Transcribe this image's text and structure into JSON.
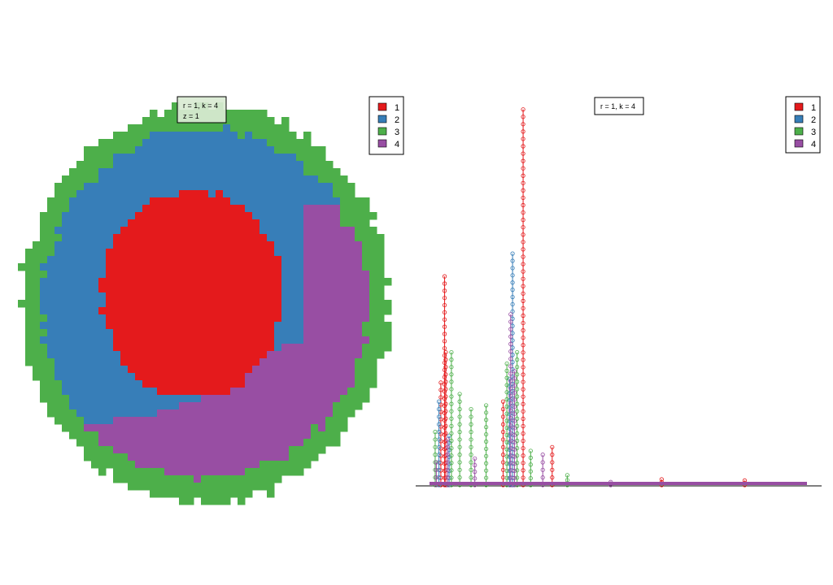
{
  "colors": {
    "cluster_1": "#E41A1C",
    "cluster_2": "#377EB8",
    "cluster_3": "#4DAF4A",
    "cluster_4": "#984EA3",
    "background": "#FFFFFF",
    "axis": "#000000",
    "info_box_fill": "#D9EAD3"
  },
  "chart_data": [
    {
      "type": "heatmap",
      "description_shown": "segmented image: clusters arranged as concentric regions",
      "info_box": {
        "line1": "r = 1, k = 4",
        "line2": "z = 1"
      },
      "legend": {
        "position": "top-right",
        "entries": [
          {
            "label": "1",
            "color": "#E41A1C"
          },
          {
            "label": "2",
            "color": "#377EB8"
          },
          {
            "label": "3",
            "color": "#4DAF4A"
          },
          {
            "label": "4",
            "color": "#984EA3"
          }
        ]
      },
      "regions": [
        {
          "cluster": "3",
          "role": "outer ring"
        },
        {
          "cluster": "2",
          "role": "upper inner ring"
        },
        {
          "cluster": "4",
          "role": "lower/right inner ring"
        },
        {
          "cluster": "1",
          "role": "core"
        }
      ],
      "grid": false,
      "axes": false
    },
    {
      "type": "line",
      "info_box": {
        "line1": "r = 1, k = 4"
      },
      "legend": {
        "position": "top-right",
        "entries": [
          {
            "label": "1",
            "color": "#E41A1C"
          },
          {
            "label": "2",
            "color": "#377EB8"
          },
          {
            "label": "3",
            "color": "#4DAF4A"
          },
          {
            "label": "4",
            "color": "#984EA3"
          }
        ]
      },
      "xlim": [
        0,
        1000
      ],
      "ylim": [
        0,
        100
      ],
      "grid": false,
      "markers": "open circles",
      "series": [
        {
          "name": "1",
          "color": "#E41A1C",
          "spikes": [
            {
              "x": 30,
              "y": 27
            },
            {
              "x": 40,
              "y": 55
            },
            {
              "x": 43,
              "y": 35
            },
            {
              "x": 248,
              "y": 99
            },
            {
              "x": 195,
              "y": 22
            },
            {
              "x": 325,
              "y": 10
            },
            {
              "x": 615,
              "y": 1.5
            },
            {
              "x": 835,
              "y": 1.2
            }
          ]
        },
        {
          "name": "2",
          "color": "#377EB8",
          "spikes": [
            {
              "x": 25,
              "y": 22
            },
            {
              "x": 52,
              "y": 13
            },
            {
              "x": 220,
              "y": 61
            },
            {
              "x": 212,
              "y": 28
            }
          ]
        },
        {
          "name": "3",
          "color": "#4DAF4A",
          "spikes": [
            {
              "x": 15,
              "y": 14
            },
            {
              "x": 58,
              "y": 35
            },
            {
              "x": 80,
              "y": 24
            },
            {
              "x": 110,
              "y": 20
            },
            {
              "x": 150,
              "y": 21
            },
            {
              "x": 205,
              "y": 32
            },
            {
              "x": 232,
              "y": 35
            },
            {
              "x": 268,
              "y": 9
            },
            {
              "x": 365,
              "y": 2.6
            }
          ]
        },
        {
          "name": "4",
          "color": "#984EA3",
          "spikes": [
            {
              "x": 18,
              "y": 6
            },
            {
              "x": 48,
              "y": 12
            },
            {
              "x": 120,
              "y": 7
            },
            {
              "x": 215,
              "y": 45
            },
            {
              "x": 225,
              "y": 30
            },
            {
              "x": 300,
              "y": 8
            },
            {
              "x": 480,
              "y": 0.8
            }
          ]
        }
      ]
    }
  ]
}
